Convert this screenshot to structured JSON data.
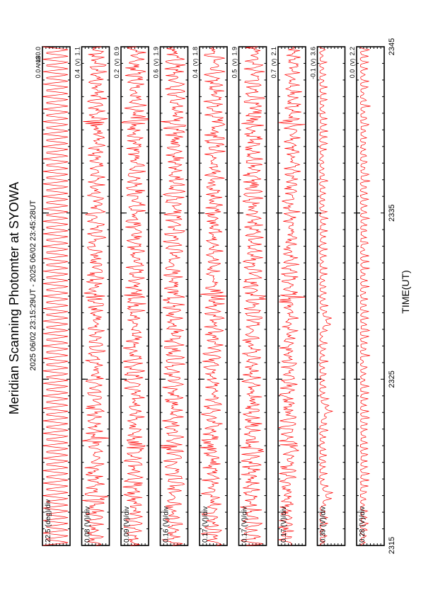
{
  "page": {
    "title": "Meridian Scanning Photomter at SYOWA",
    "time_range": "2025 06/02 23:15:29UT - 2025 06/02 23:45:28UT",
    "colors": {
      "trace": "#ff0000",
      "axes": "#000000",
      "background": "#ffffff"
    }
  },
  "chart_data": {
    "type": "line",
    "title": "Meridian Scanning Photomter at SYOWA",
    "subtitle": "2025 06/02 23:15:29UT - 2025 06/02 23:45:28UT",
    "xlabel": "TIME(UT)",
    "x_ticks": [
      "2315",
      "2325",
      "2335",
      "2345"
    ],
    "x_range": [
      "2315",
      "2345"
    ],
    "orientation": "rotated 90 degrees",
    "panels": [
      {
        "key": "angle",
        "scale": "22.5 (deg)/div",
        "y_top": "180.0",
        "y_mid": "ANG",
        "y_bottom": "0.0",
        "profile": "sawtooth",
        "level": [
          0.5,
          0.5
        ],
        "amp": 1.0,
        "events": []
      },
      {
        "key": "ch1",
        "scale": "0.08 (V)/div",
        "y_top": "1.1",
        "y_mid": "(V)",
        "y_bottom": "0.4",
        "profile": "noise",
        "level": [
          0.45,
          0.55
        ],
        "amp": 0.35,
        "events": [
          0.09,
          0.21,
          0.5,
          0.85
        ]
      },
      {
        "key": "ch2",
        "scale": "0.09 (V)/div",
        "y_top": "0.9",
        "y_mid": "(V)",
        "y_bottom": "0.2",
        "profile": "noise",
        "level": [
          0.45,
          0.55
        ],
        "amp": 0.38,
        "events": [
          0.2,
          0.5,
          0.85
        ]
      },
      {
        "key": "ch3",
        "scale": "0.16 (V)/div",
        "y_top": "1.9",
        "y_mid": "(V)",
        "y_bottom": "0.6",
        "profile": "noise",
        "level": [
          0.45,
          0.55
        ],
        "amp": 0.38,
        "events": [
          0.2,
          0.5,
          0.85
        ]
      },
      {
        "key": "ch4",
        "scale": "0.17 (V)/div",
        "y_top": "1.8",
        "y_mid": "(V)",
        "y_bottom": "0.4",
        "profile": "noise",
        "level": [
          0.45,
          0.55
        ],
        "amp": 0.38,
        "events": [
          0.2,
          0.5,
          0.85
        ]
      },
      {
        "key": "ch5",
        "scale": "0.17 (V)/div",
        "y_top": "1.9",
        "y_mid": "(V)",
        "y_bottom": "0.5",
        "profile": "noise",
        "level": [
          0.45,
          0.55
        ],
        "amp": 0.38,
        "events": [
          0.2,
          0.5,
          0.85
        ]
      },
      {
        "key": "ch6",
        "scale": "0.17 (V)/div",
        "y_top": "2.1",
        "y_mid": "(V)",
        "y_bottom": "0.7",
        "profile": "noise",
        "level": [
          0.3,
          0.55
        ],
        "amp": 0.32,
        "events": [
          0.2,
          0.5,
          0.85
        ]
      },
      {
        "key": "ch7",
        "scale": "0.39 (V)/div",
        "y_top": "3.6",
        "y_mid": "(V)",
        "y_bottom": "-0.1",
        "profile": "spiky",
        "level": [
          0.1,
          0.1
        ],
        "amp": 0.25,
        "events": [
          0.1,
          0.27,
          0.45
        ]
      },
      {
        "key": "ch8",
        "scale": "0.28 (V)/div",
        "y_top": "2.2",
        "y_mid": "(V)",
        "y_bottom": "0.0",
        "profile": "spiky",
        "level": [
          0.15,
          0.15
        ],
        "amp": 0.3,
        "events": []
      }
    ]
  }
}
